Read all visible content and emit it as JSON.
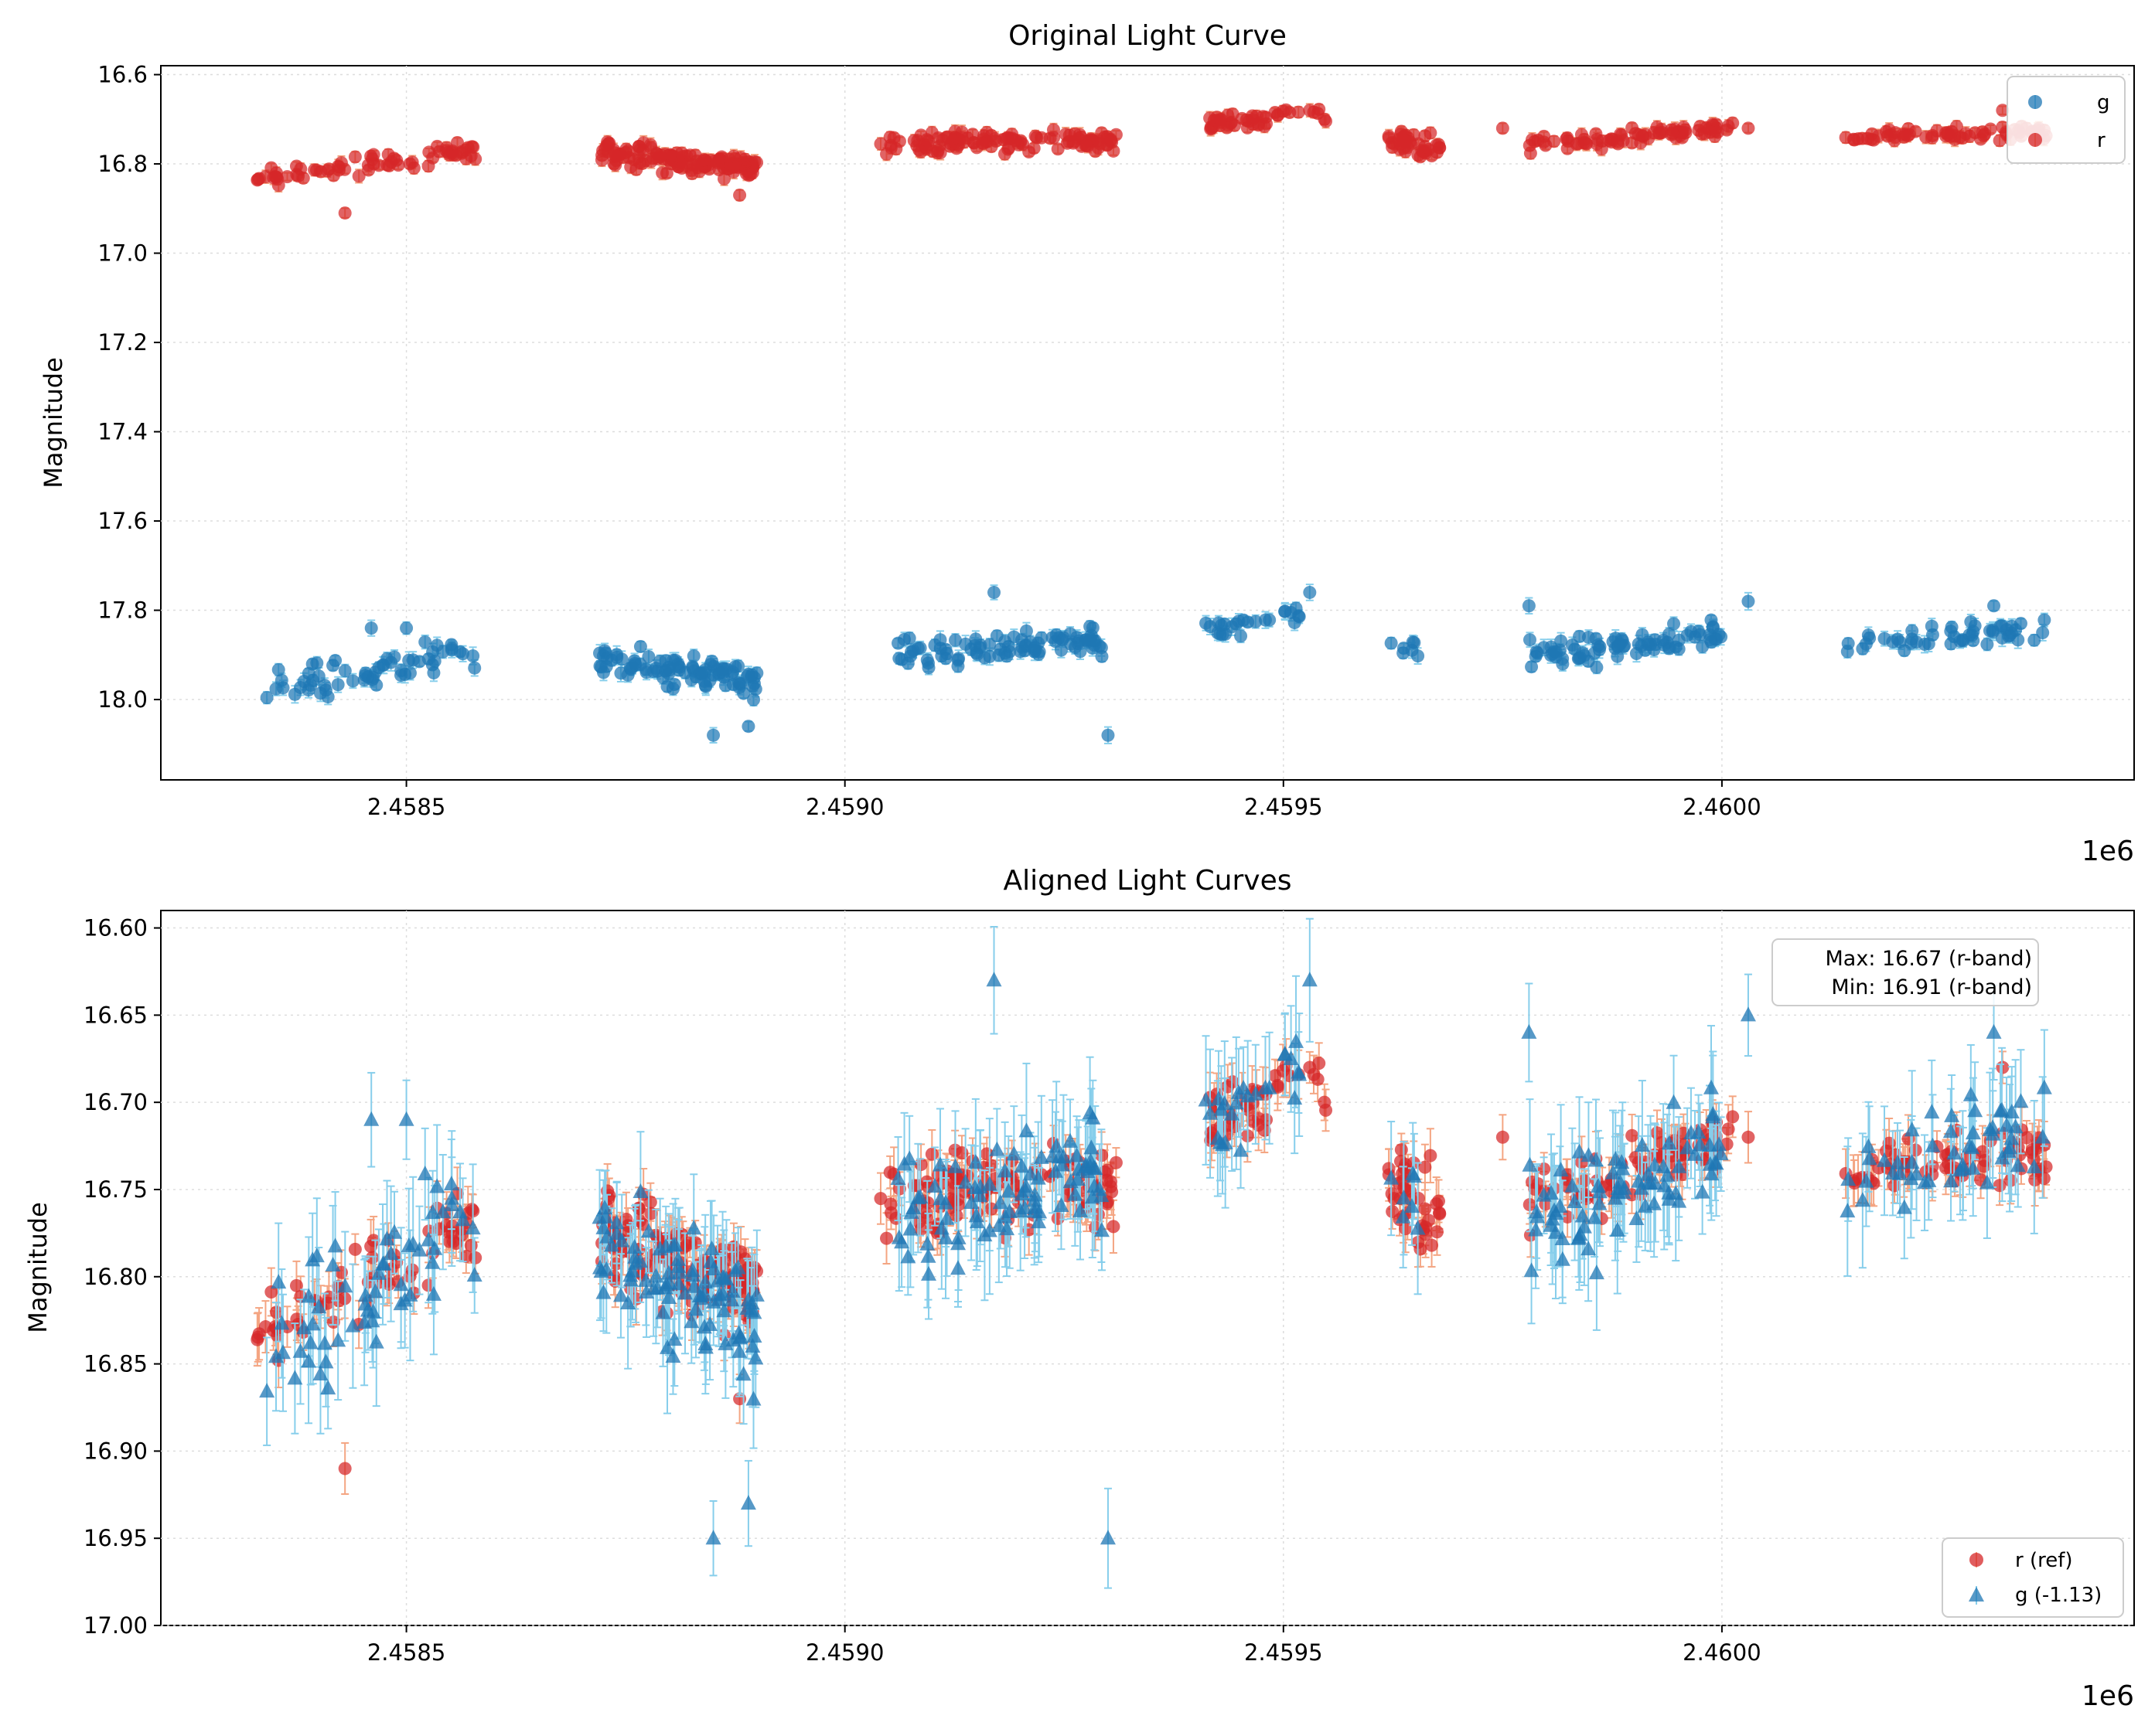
{
  "chart_data": [
    {
      "type": "scatter",
      "title": "Original Light Curve",
      "xlabel": "",
      "ylabel": "Magnitude",
      "x_offset_label": "1e6",
      "xlim": [
        2.45822,
        2.46047
      ],
      "ylim": [
        18.18,
        16.58
      ],
      "y_inverted": true,
      "xticks": [
        2.4585,
        2.459,
        2.4595,
        2.46
      ],
      "xtick_labels": [
        "2.4585",
        "2.4590",
        "2.4595",
        "2.4600"
      ],
      "yticks": [
        16.6,
        16.8,
        17.0,
        17.2,
        17.4,
        17.6,
        17.8,
        18.0
      ],
      "ytick_labels": [
        "16.6",
        "16.8",
        "17.0",
        "17.2",
        "17.4",
        "17.6",
        "17.8",
        "18.0"
      ],
      "grid": true,
      "legend": {
        "position": "top-right",
        "entries": [
          "g",
          "r"
        ]
      },
      "series": [
        {
          "name": "g",
          "color": "#1f77b4",
          "marker": "circle",
          "err_color": "#87ceeb",
          "err": 0.015,
          "offset": 0,
          "segments": [
            {
              "x0": 2.45833,
              "x1": 2.45858,
              "n": 60,
              "y0": 17.97,
              "y1": 17.9,
              "s": 0.045
            },
            {
              "x0": 2.45872,
              "x1": 2.4589,
              "n": 95,
              "y0": 17.91,
              "y1": 17.96,
              "s": 0.04
            },
            {
              "x0": 2.45906,
              "x1": 2.4593,
              "n": 90,
              "y0": 17.9,
              "y1": 17.87,
              "s": 0.035
            },
            {
              "x0": 2.45941,
              "x1": 2.45952,
              "n": 25,
              "y0": 17.85,
              "y1": 17.81,
              "s": 0.03
            },
            {
              "x0": 2.45962,
              "x1": 2.45966,
              "n": 7,
              "y0": 17.88,
              "y1": 17.88,
              "s": 0.04
            },
            {
              "x0": 2.45978,
              "x1": 2.46,
              "n": 80,
              "y0": 17.9,
              "y1": 17.86,
              "s": 0.035
            },
            {
              "x0": 2.46014,
              "x1": 2.46037,
              "n": 50,
              "y0": 17.88,
              "y1": 17.84,
              "s": 0.03
            }
          ],
          "outliers": [
            [
              2.45846,
              17.84
            ],
            [
              2.4585,
              17.84
            ],
            [
              2.45885,
              18.08
            ],
            [
              2.45889,
              18.06
            ],
            [
              2.45917,
              17.76
            ],
            [
              2.4593,
              18.08
            ],
            [
              2.45953,
              17.76
            ],
            [
              2.46003,
              17.78
            ],
            [
              2.45978,
              17.79
            ],
            [
              2.46031,
              17.79
            ]
          ]
        },
        {
          "name": "r",
          "color": "#d62728",
          "marker": "circle",
          "err_color": "#f4a582",
          "err": 0.012,
          "offset": 0,
          "segments": [
            {
              "x0": 2.45833,
              "x1": 2.45858,
              "n": 70,
              "y0": 16.83,
              "y1": 16.77,
              "s": 0.025
            },
            {
              "x0": 2.45872,
              "x1": 2.4589,
              "n": 140,
              "y0": 16.77,
              "y1": 16.81,
              "s": 0.03
            },
            {
              "x0": 2.45904,
              "x1": 2.45931,
              "n": 120,
              "y0": 16.75,
              "y1": 16.75,
              "s": 0.025
            },
            {
              "x0": 2.45941,
              "x1": 2.45955,
              "n": 45,
              "y0": 16.71,
              "y1": 16.69,
              "s": 0.02
            },
            {
              "x0": 2.45962,
              "x1": 2.45968,
              "n": 40,
              "y0": 16.75,
              "y1": 16.76,
              "s": 0.03
            },
            {
              "x0": 2.45978,
              "x1": 2.46002,
              "n": 80,
              "y0": 16.76,
              "y1": 16.72,
              "s": 0.02
            },
            {
              "x0": 2.46014,
              "x1": 2.46037,
              "n": 70,
              "y0": 16.74,
              "y1": 16.73,
              "s": 0.02
            }
          ],
          "outliers": [
            [
              2.45843,
              16.91
            ],
            [
              2.45888,
              16.87
            ],
            [
              2.45953,
              16.68
            ],
            [
              2.45975,
              16.72
            ],
            [
              2.46003,
              16.72
            ],
            [
              2.46032,
              16.68
            ]
          ]
        }
      ]
    },
    {
      "type": "scatter",
      "title": "Aligned Light Curves",
      "xlabel": "",
      "ylabel": "Magnitude",
      "x_offset_label": "1e6",
      "xlim": [
        2.45822,
        2.46047
      ],
      "ylim": [
        17.0,
        16.59
      ],
      "y_inverted": true,
      "xticks": [
        2.4585,
        2.459,
        2.4595,
        2.46
      ],
      "xtick_labels": [
        "2.4585",
        "2.4590",
        "2.4595",
        "2.4600"
      ],
      "yticks": [
        16.6,
        16.65,
        16.7,
        16.75,
        16.8,
        16.85,
        16.9,
        16.95,
        17.0
      ],
      "ytick_labels": [
        "16.60",
        "16.65",
        "16.70",
        "16.75",
        "16.80",
        "16.85",
        "16.90",
        "16.95",
        "17.00"
      ],
      "grid": true,
      "legend": {
        "position": "bottom-right",
        "entries": [
          "r (ref)",
          "g (-1.13)"
        ]
      },
      "annotation": {
        "lines": [
          "Max: 16.67 (r-band)",
          "Min: 16.91 (r-band)"
        ],
        "position": "top-right"
      },
      "series": [
        {
          "name": "r (ref)",
          "color": "#d62728",
          "marker": "circle",
          "err_color": "#f4a582",
          "err": 0.012,
          "offset": 0,
          "source": "r"
        },
        {
          "name": "g (-1.13)",
          "color": "#1f77b4",
          "marker": "triangle",
          "err_color": "#87ceeb",
          "err": 0.03,
          "offset": -1.13,
          "source": "g"
        }
      ]
    }
  ]
}
